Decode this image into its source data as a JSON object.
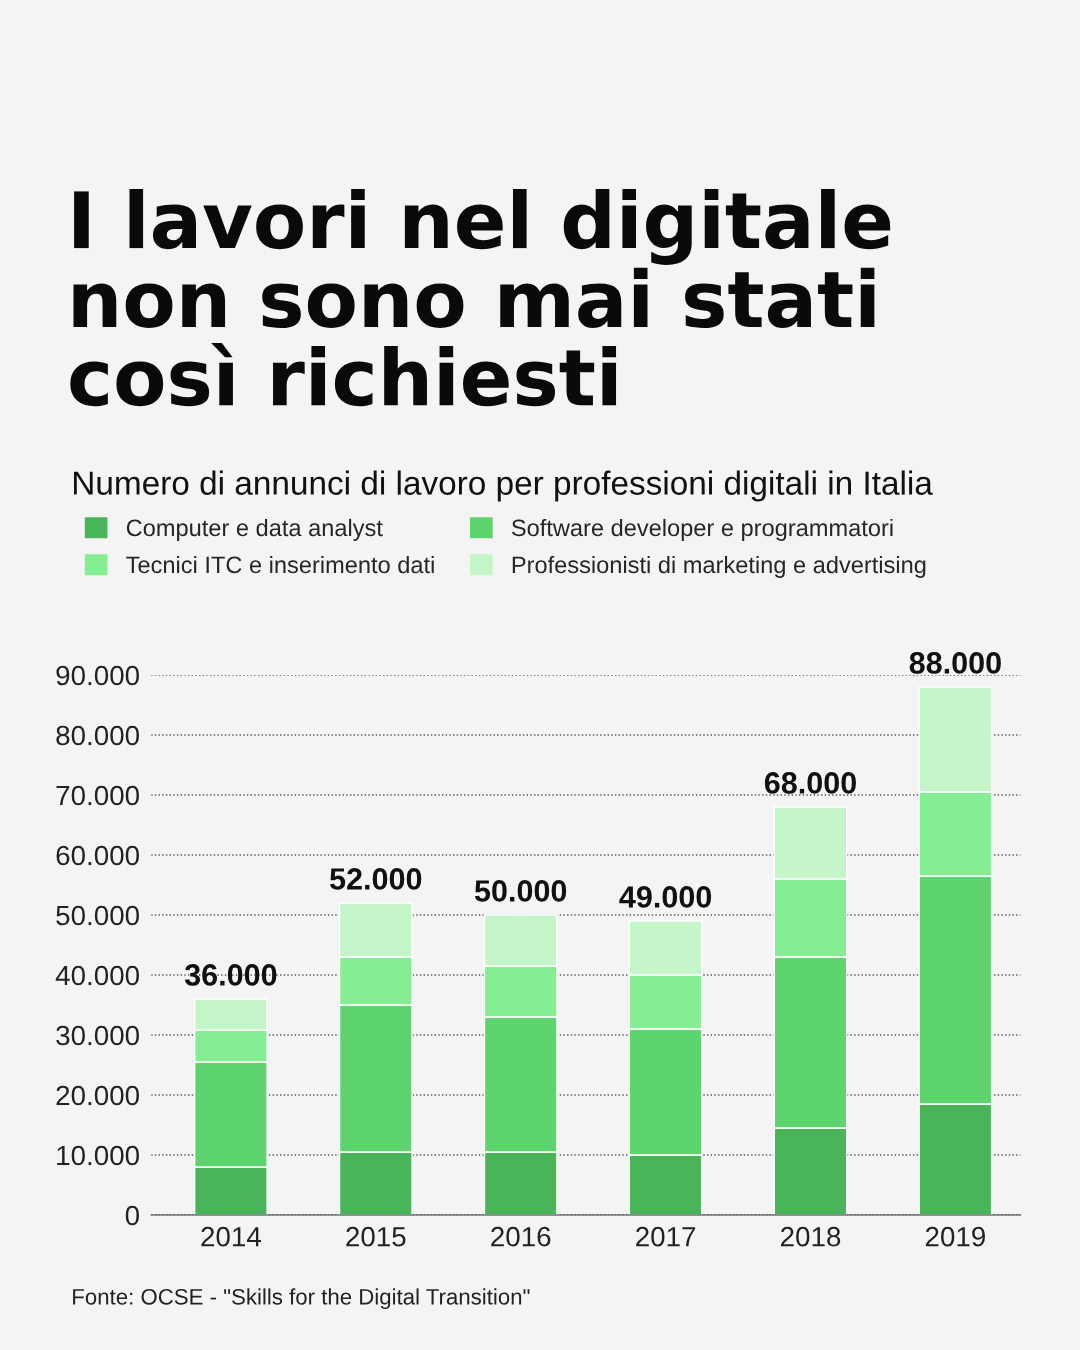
{
  "chart_data": {
    "type": "bar",
    "stacked": true,
    "title": "I lavori nel digitale\nnon sono mai stati\ncosì richiesti",
    "subtitle": "Numero di annunci di lavoro per professioni digitali in Italia",
    "categories": [
      "2014",
      "2015",
      "2016",
      "2017",
      "2018",
      "2019"
    ],
    "series": [
      {
        "name": "Computer e data analyst",
        "color": "#47b558",
        "values": [
          8000,
          10500,
          10500,
          10000,
          14500,
          18500
        ]
      },
      {
        "name": "Software developer e programmatori",
        "color": "#5dd46e",
        "values": [
          17500,
          24500,
          22500,
          21000,
          28500,
          38000
        ]
      },
      {
        "name": "Tecnici ITC e inserimento dati",
        "color": "#86ee92",
        "values": [
          5300,
          8000,
          8500,
          9000,
          13000,
          14000
        ]
      },
      {
        "name": "Professionisti di marketing e advertising",
        "color": "#c4f5c8",
        "values": [
          5200,
          9000,
          8500,
          9000,
          12000,
          17500
        ]
      }
    ],
    "totals": [
      "36.000",
      "52.000",
      "50.000",
      "49.000",
      "68.000",
      "88.000"
    ],
    "ylim": [
      0,
      90000
    ],
    "yticks": [
      0,
      {
        "value": 10000,
        "label": "10.000"
      },
      {
        "value": 20000,
        "label": "20.000"
      },
      {
        "value": 30000,
        "label": "30.000"
      },
      {
        "value": 40000,
        "label": "40.000"
      },
      {
        "value": 50000,
        "label": "50.000"
      },
      {
        "value": 60000,
        "label": "60.000"
      },
      {
        "value": 70000,
        "label": "70.000"
      },
      {
        "value": 80000,
        "label": "80.000"
      },
      {
        "value": 90000,
        "label": "90.000"
      }
    ],
    "grid": "y",
    "legend": "top",
    "annotations": [
      "Fonte: OCSE - \"Skills for the Digital Transition\""
    ]
  }
}
